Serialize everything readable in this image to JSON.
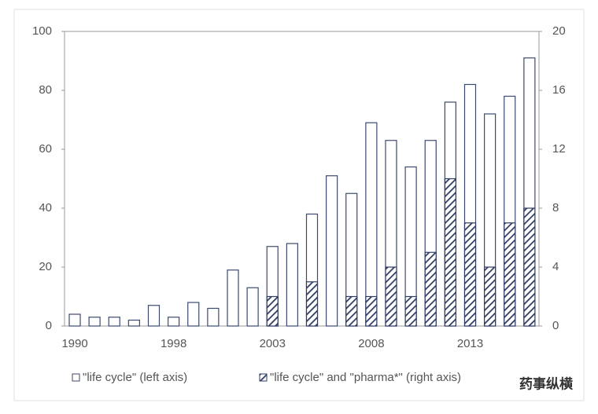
{
  "chart_data": {
    "type": "bar",
    "categories": [
      "1990",
      null,
      null,
      null,
      null,
      "1998",
      null,
      null,
      null,
      null,
      "2003",
      null,
      null,
      null,
      null,
      "2008",
      null,
      null,
      null,
      null,
      "2013",
      null,
      null,
      null
    ],
    "series": [
      {
        "name": "\"life cycle\" (left axis)",
        "color": "#ffffff",
        "edge": "#3c4a6e",
        "values": [
          4,
          3,
          3,
          2,
          7,
          3,
          8,
          6,
          19,
          13,
          27,
          28,
          38,
          51,
          45,
          69,
          63,
          54,
          63,
          76,
          82,
          72,
          78,
          91
        ]
      },
      {
        "name": "\"life cycle\" and \"pharma*\" (right axis)",
        "color": "#2e3b63",
        "axis": "y2",
        "hatch": true,
        "values": [
          0,
          0,
          0,
          0,
          0,
          0,
          0,
          0,
          0,
          0,
          2,
          0,
          3,
          0,
          2,
          2,
          4,
          2,
          5,
          10,
          7,
          4,
          7,
          8
        ]
      }
    ],
    "ylim": [
      0,
      100
    ],
    "yticks": [
      0,
      20,
      40,
      60,
      80,
      100
    ],
    "y2lim": [
      0,
      20
    ],
    "y2ticks": [
      0,
      4,
      8,
      12,
      16,
      20
    ],
    "legend": "bottom",
    "watermark": "药事纵横"
  }
}
